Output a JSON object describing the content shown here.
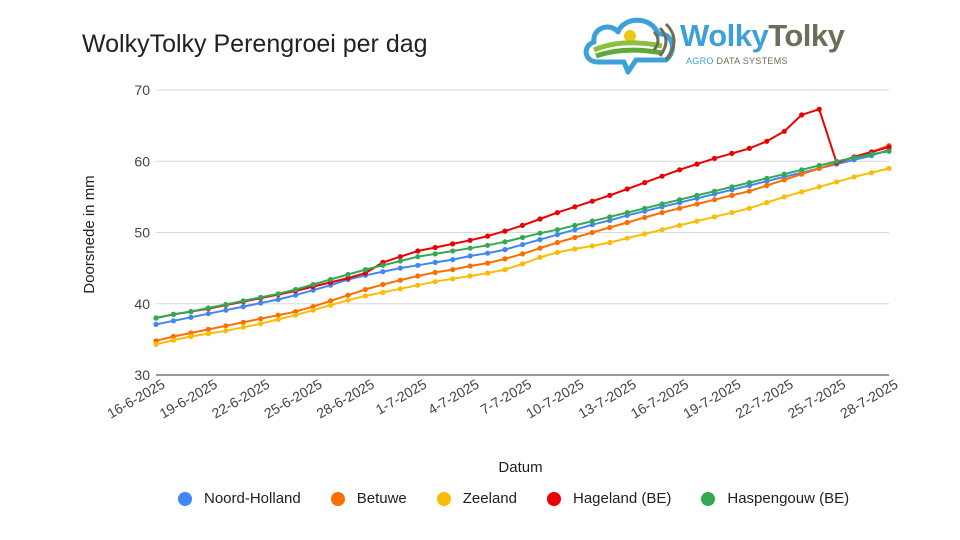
{
  "colors": {
    "noord_holland": "#4285F4",
    "betuwe": "#FF6D01",
    "zeeland": "#FBBC04",
    "hageland": "#EA0000",
    "haspengouw": "#34A853",
    "grid": "#d9d9d9",
    "brand_blue": "#3ea0d8",
    "brand_olive": "#6b6f57"
  },
  "logo": {
    "name_part1": "Wolky",
    "name_part2": "Tolky",
    "sub_part1": "AGRO",
    "sub_part2": "DATA SYSTEMS",
    "icon": "cloud-field-logo-icon"
  },
  "chart_data": {
    "type": "line",
    "title": "WolkyTolky Perengroei per dag",
    "xlabel": "Datum",
    "ylabel": "Doorsnede in mm",
    "ylim": [
      30,
      70
    ],
    "yticks": [
      30,
      40,
      50,
      60,
      70
    ],
    "grid": true,
    "legend_position": "bottom",
    "x": [
      "16-6-2025",
      "17-6-2025",
      "18-6-2025",
      "19-6-2025",
      "20-6-2025",
      "21-6-2025",
      "22-6-2025",
      "23-6-2025",
      "24-6-2025",
      "25-6-2025",
      "26-6-2025",
      "27-6-2025",
      "28-6-2025",
      "29-6-2025",
      "30-6-2025",
      "1-7-2025",
      "2-7-2025",
      "3-7-2025",
      "4-7-2025",
      "5-7-2025",
      "6-7-2025",
      "7-7-2025",
      "8-7-2025",
      "9-7-2025",
      "10-7-2025",
      "11-7-2025",
      "12-7-2025",
      "13-7-2025",
      "14-7-2025",
      "15-7-2025",
      "16-7-2025",
      "17-7-2025",
      "18-7-2025",
      "19-7-2025",
      "20-7-2025",
      "21-7-2025",
      "22-7-2025",
      "23-7-2025",
      "24-7-2025",
      "25-7-2025",
      "26-7-2025",
      "27-7-2025",
      "28-7-2025"
    ],
    "xtick_labels": [
      "16-6-2025",
      "19-6-2025",
      "22-6-2025",
      "25-6-2025",
      "28-6-2025",
      "1-7-2025",
      "4-7-2025",
      "7-7-2025",
      "10-7-2025",
      "13-7-2025",
      "16-7-2025",
      "19-7-2025",
      "22-7-2025",
      "25-7-2025",
      "28-7-2025"
    ],
    "series": [
      {
        "name": "Noord-Holland",
        "values": [
          37.1,
          37.6,
          38.1,
          38.6,
          39.1,
          39.6,
          40.1,
          40.6,
          41.2,
          41.9,
          42.6,
          43.4,
          44.0,
          44.5,
          45.0,
          45.4,
          45.8,
          46.2,
          46.7,
          47.1,
          47.6,
          48.3,
          49.0,
          49.7,
          50.4,
          51.1,
          51.7,
          52.4,
          53.0,
          53.6,
          54.2,
          54.8,
          55.4,
          56.0,
          56.6,
          57.2,
          57.8,
          58.4,
          59.0,
          59.6,
          60.2,
          60.8,
          61.6
        ]
      },
      {
        "name": "Betuwe",
        "values": [
          34.8,
          35.4,
          35.9,
          36.4,
          36.9,
          37.4,
          37.9,
          38.4,
          38.9,
          39.6,
          40.4,
          41.2,
          42.0,
          42.7,
          43.3,
          43.9,
          44.4,
          44.8,
          45.3,
          45.7,
          46.3,
          47.0,
          47.8,
          48.6,
          49.3,
          50.0,
          50.7,
          51.4,
          52.1,
          52.8,
          53.4,
          54.0,
          54.6,
          55.2,
          55.8,
          56.6,
          57.4,
          58.2,
          59.0,
          59.8,
          60.6,
          61.3,
          62.2
        ]
      },
      {
        "name": "Zeeland",
        "values": [
          34.3,
          34.9,
          35.4,
          35.8,
          36.2,
          36.7,
          37.2,
          37.8,
          38.4,
          39.1,
          39.8,
          40.5,
          41.1,
          41.6,
          42.1,
          42.6,
          43.1,
          43.5,
          43.9,
          44.3,
          44.8,
          45.6,
          46.5,
          47.2,
          47.7,
          48.1,
          48.6,
          49.2,
          49.8,
          50.4,
          51.0,
          51.6,
          52.2,
          52.8,
          53.4,
          54.2,
          55.0,
          55.7,
          56.4,
          57.1,
          57.8,
          58.4,
          59.0
        ]
      },
      {
        "name": "Hageland (BE)",
        "values": [
          38.0,
          38.5,
          38.9,
          39.3,
          39.8,
          40.3,
          40.8,
          41.3,
          41.8,
          42.4,
          43.0,
          43.6,
          44.3,
          45.8,
          46.6,
          47.4,
          47.9,
          48.4,
          48.9,
          49.5,
          50.2,
          51.0,
          51.9,
          52.8,
          53.6,
          54.4,
          55.2,
          56.1,
          57.0,
          57.9,
          58.8,
          59.6,
          60.4,
          61.1,
          61.8,
          62.8,
          64.2,
          66.5,
          67.3,
          59.8,
          60.6,
          61.3,
          62.0
        ]
      },
      {
        "name": "Haspengouw (BE)",
        "values": [
          38.0,
          38.5,
          38.9,
          39.4,
          39.9,
          40.4,
          40.9,
          41.4,
          42.0,
          42.7,
          43.4,
          44.1,
          44.8,
          45.4,
          46.0,
          46.6,
          47.0,
          47.4,
          47.8,
          48.2,
          48.7,
          49.3,
          49.9,
          50.4,
          51.0,
          51.6,
          52.2,
          52.8,
          53.4,
          54.0,
          54.6,
          55.2,
          55.8,
          56.4,
          57.0,
          57.6,
          58.2,
          58.8,
          59.4,
          60.0,
          60.5,
          61.0,
          61.4
        ]
      }
    ]
  }
}
